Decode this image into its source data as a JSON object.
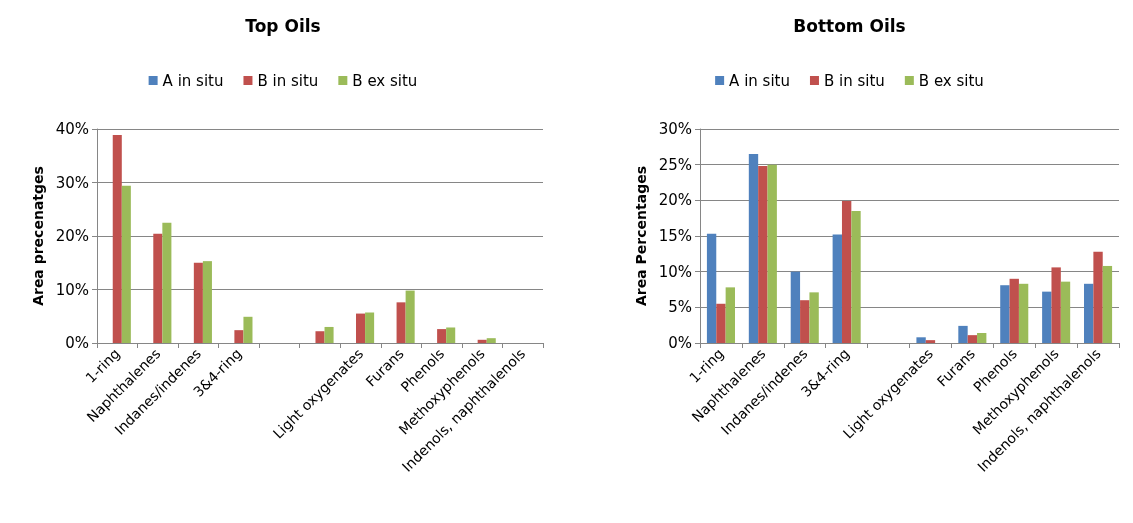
{
  "chart_data": [
    {
      "type": "bar",
      "title": "Top Oils",
      "ylabel": "Area precenatges",
      "categories": [
        "1-ring",
        "Naphthalenes",
        "Indanes/indenes",
        "3&4-ring",
        null,
        null,
        "Light oxygenates",
        "Furans",
        "Phenols",
        "Methoxyphenols",
        "Indenols, naphthalenols"
      ],
      "series": [
        {
          "name": "A in situ",
          "color": "#4f81bd",
          "values": [
            null,
            null,
            null,
            null,
            null,
            null,
            null,
            null,
            null,
            null,
            null
          ]
        },
        {
          "name": "B in situ",
          "color": "#c0504d",
          "values": [
            38.9,
            20.4,
            15.0,
            2.4,
            null,
            2.2,
            5.5,
            7.6,
            2.6,
            0.6,
            null
          ]
        },
        {
          "name": "B ex situ",
          "color": "#9bbb59",
          "values": [
            29.4,
            22.5,
            15.3,
            4.9,
            null,
            3.0,
            5.7,
            9.8,
            2.9,
            0.9,
            null
          ]
        }
      ],
      "ylim": [
        0,
        40
      ],
      "yticks": [
        {
          "value": 0,
          "label": "0%"
        },
        {
          "value": 10,
          "label": "10%"
        },
        {
          "value": 20,
          "label": "20%"
        },
        {
          "value": 30,
          "label": "30%"
        },
        {
          "value": 40,
          "label": "40%"
        }
      ],
      "grid": "y",
      "legend": "top"
    },
    {
      "type": "bar",
      "title": "Bottom Oils",
      "ylabel": "Area Percentages",
      "categories": [
        "1-ring",
        "Naphthalenes",
        "Indanes/indenes",
        "3&4-ring",
        null,
        "Light oxygenates",
        "Furans",
        "Phenols",
        "Methoxyphenols",
        "Indenols, naphthalenols"
      ],
      "series": [
        {
          "name": "A in situ",
          "color": "#4f81bd",
          "values": [
            15.3,
            26.5,
            10.0,
            15.2,
            null,
            0.8,
            2.4,
            8.1,
            7.2,
            8.3
          ]
        },
        {
          "name": "B in situ",
          "color": "#c0504d",
          "values": [
            5.5,
            24.8,
            6.0,
            19.9,
            null,
            0.4,
            1.1,
            9.0,
            10.6,
            12.8
          ]
        },
        {
          "name": "B ex situ",
          "color": "#9bbb59",
          "values": [
            7.8,
            25.0,
            7.1,
            18.5,
            null,
            null,
            1.4,
            8.3,
            8.6,
            10.8
          ]
        }
      ],
      "ylim": [
        0,
        30
      ],
      "yticks": [
        {
          "value": 0,
          "label": "0%"
        },
        {
          "value": 5,
          "label": "5%"
        },
        {
          "value": 10,
          "label": "10%"
        },
        {
          "value": 15,
          "label": "15%"
        },
        {
          "value": 20,
          "label": "20%"
        },
        {
          "value": 25,
          "label": "25%"
        },
        {
          "value": 30,
          "label": "30%"
        }
      ],
      "grid": "y",
      "legend": "top"
    }
  ]
}
